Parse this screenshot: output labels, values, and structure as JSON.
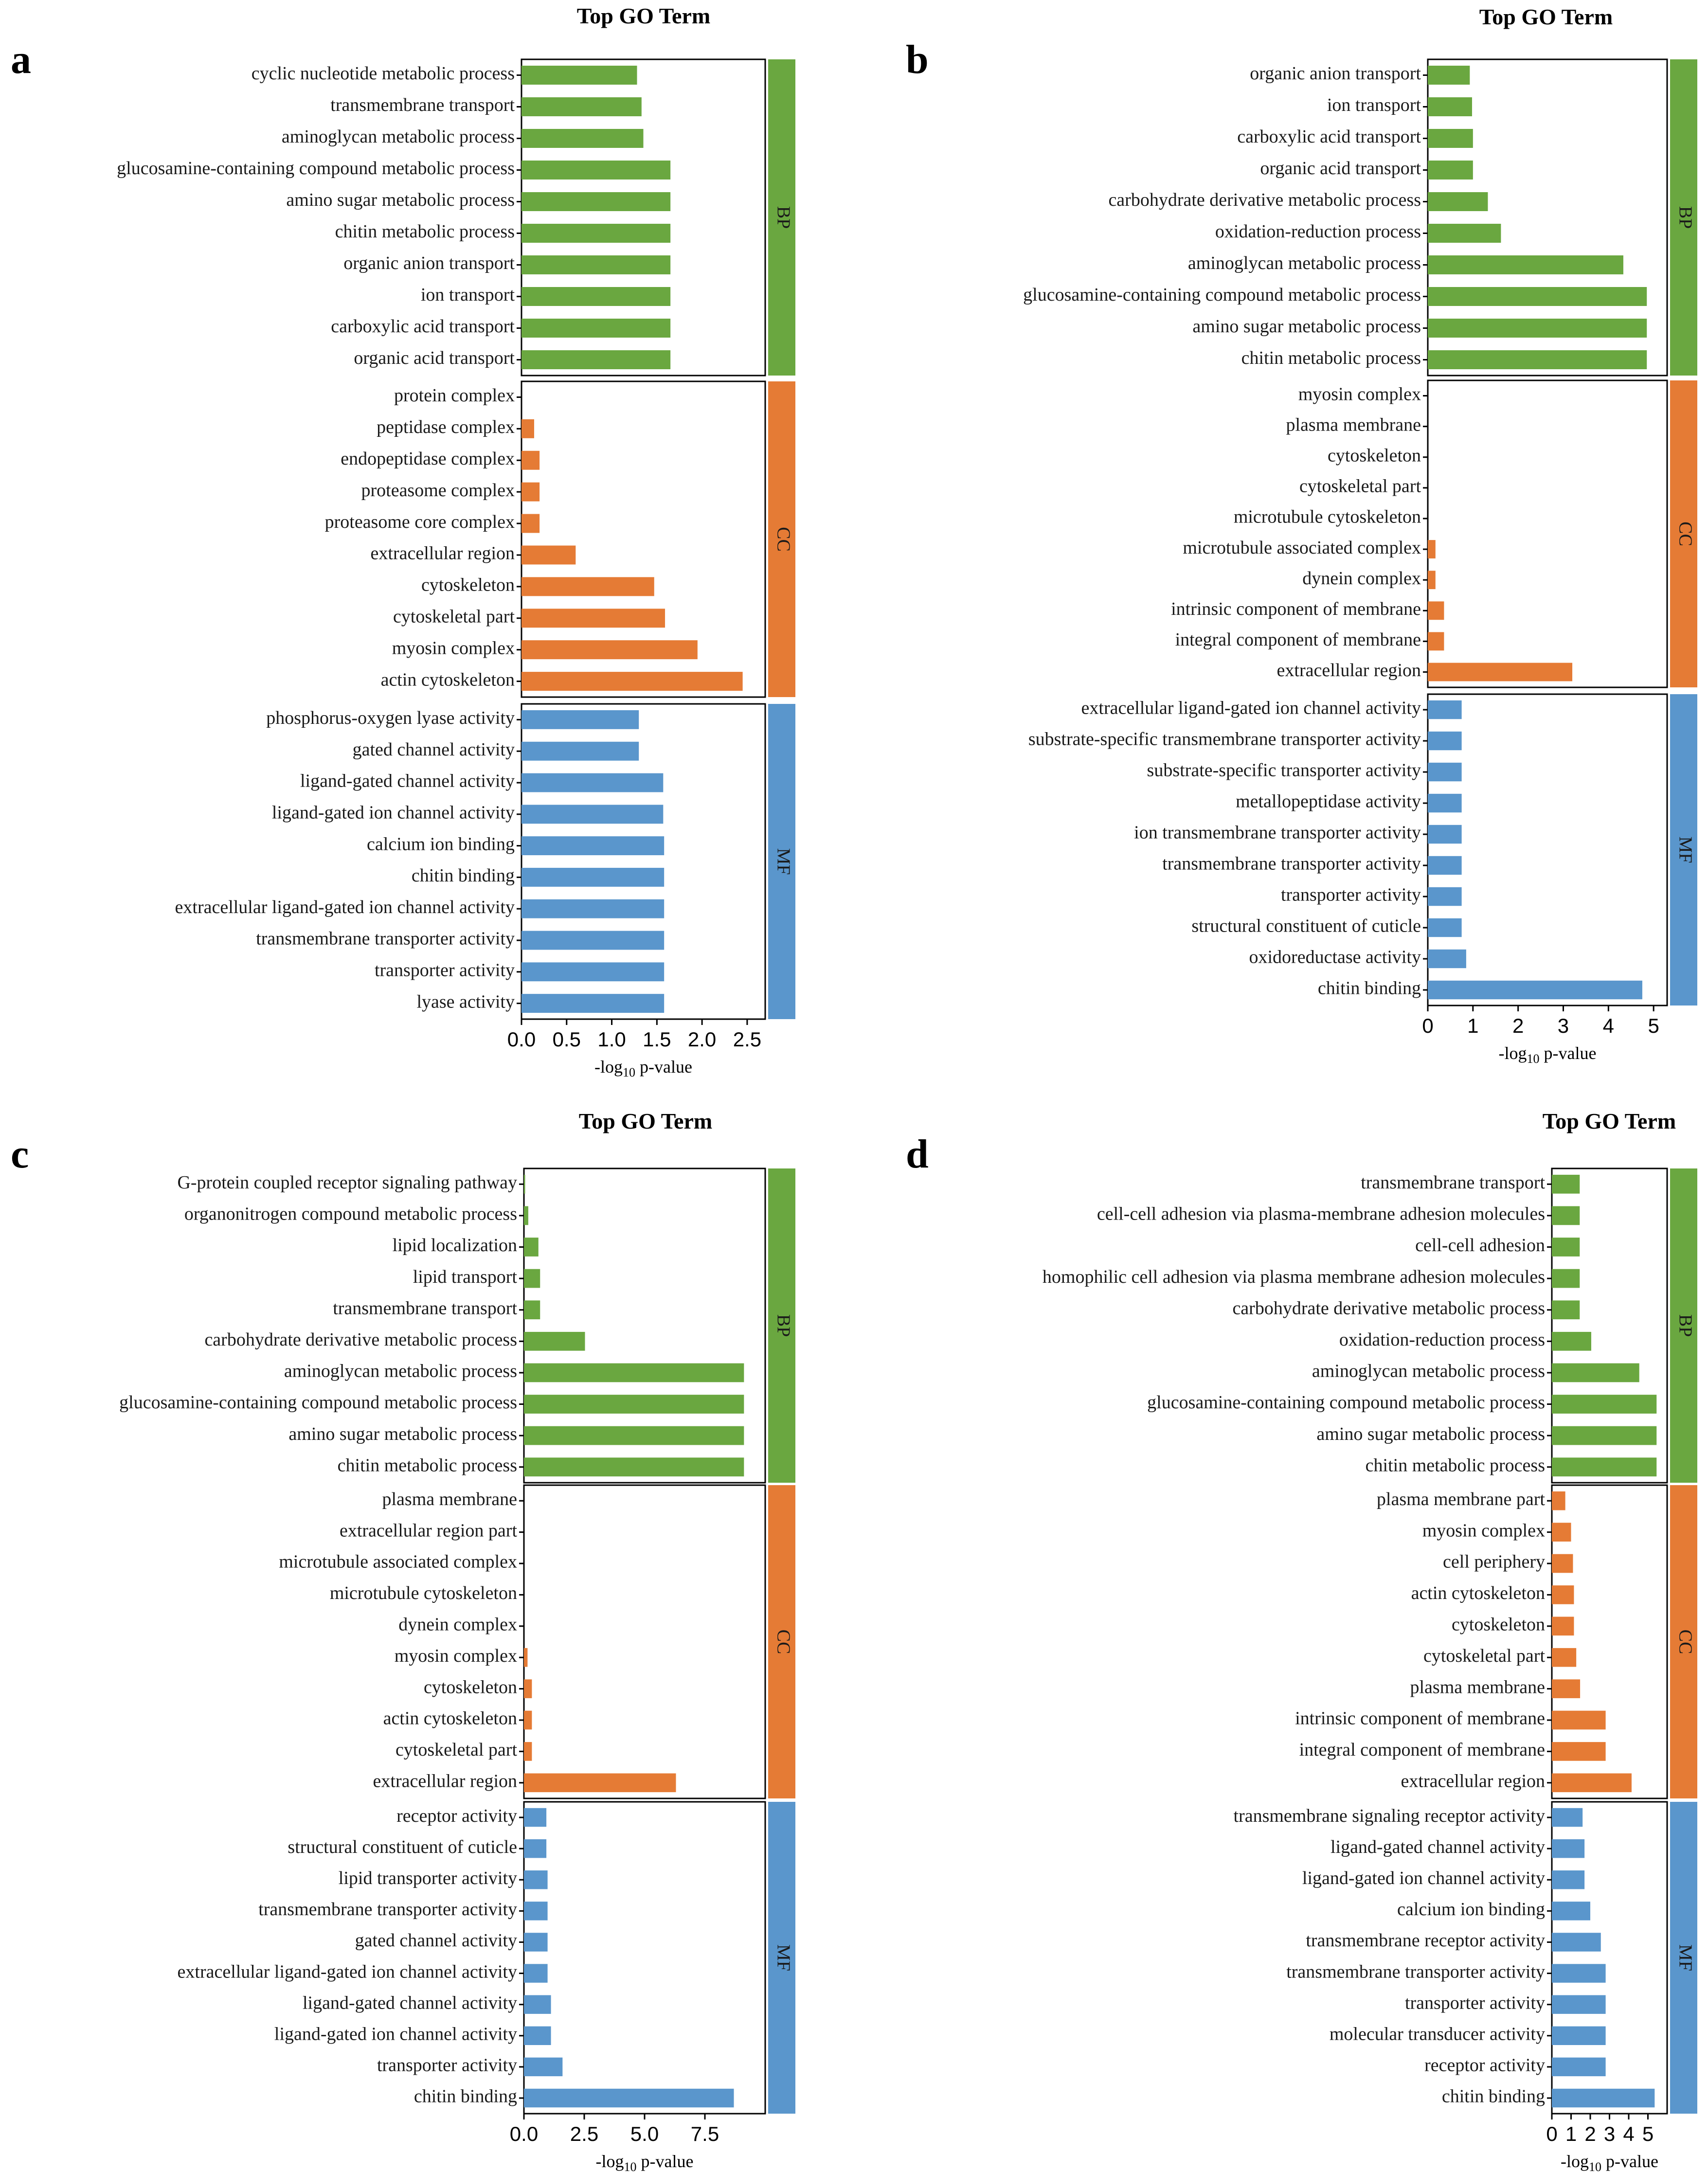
{
  "figure": {
    "colors": {
      "BP": "#6aa740",
      "CC": "#e57b35",
      "MF": "#5a96cc"
    }
  },
  "chart_data": [
    {
      "type": "bar",
      "panel_label": "a",
      "title": "Top GO Term",
      "xlabel_main": "-log",
      "xlabel_sub": "10",
      "xlabel_rest": " p-value",
      "xlim": [
        0,
        2.7
      ],
      "xticks": [
        "0.0",
        "0.5",
        "1.0",
        "1.5",
        "2.0",
        "2.5"
      ],
      "xtick_values": [
        0,
        0.5,
        1.0,
        1.5,
        2.0,
        2.5
      ],
      "groups": [
        {
          "name": "BP",
          "categories": [
            "cyclic nucleotide metabolic process",
            "transmembrane transport",
            "aminoglycan metabolic process",
            "glucosamine-containing compound metabolic process",
            "amino sugar metabolic process",
            "chitin metabolic process",
            "organic anion transport",
            "ion transport",
            "carboxylic acid transport",
            "organic acid transport"
          ],
          "values": [
            1.28,
            1.33,
            1.35,
            1.65,
            1.65,
            1.65,
            1.65,
            1.65,
            1.65,
            1.65
          ]
        },
        {
          "name": "CC",
          "categories": [
            "protein complex",
            "peptidase complex",
            "endopeptidase complex",
            "proteasome complex",
            "proteasome core complex",
            "extracellular region",
            "cytoskeleton",
            "cytoskeletal part",
            "myosin complex",
            "actin cytoskeleton"
          ],
          "values": [
            0.0,
            0.14,
            0.2,
            0.2,
            0.2,
            0.6,
            1.47,
            1.59,
            1.95,
            2.45
          ]
        },
        {
          "name": "MF",
          "categories": [
            "phosphorus-oxygen lyase activity",
            "gated channel activity",
            "ligand-gated channel activity",
            "ligand-gated ion channel activity",
            "calcium ion binding",
            "chitin binding",
            "extracellular ligand-gated ion channel activity",
            "transmembrane transporter activity",
            "transporter activity",
            "lyase activity"
          ],
          "values": [
            1.3,
            1.3,
            1.57,
            1.57,
            1.58,
            1.58,
            1.58,
            1.58,
            1.58,
            1.58
          ]
        }
      ]
    },
    {
      "type": "bar",
      "panel_label": "b",
      "title": "Top GO Term",
      "xlabel_main": "-log",
      "xlabel_sub": "10",
      "xlabel_rest": " p-value",
      "xlim": [
        0,
        5.3
      ],
      "xticks": [
        "0",
        "1",
        "2",
        "3",
        "4",
        "5"
      ],
      "xtick_values": [
        0,
        1,
        2,
        3,
        4,
        5
      ],
      "groups": [
        {
          "name": "BP",
          "categories": [
            "organic anion transport",
            "ion transport",
            "carboxylic acid transport",
            "organic acid transport",
            "carbohydrate derivative metabolic process",
            "oxidation-reduction process",
            "aminoglycan metabolic process",
            "glucosamine-containing compound metabolic process",
            "amino sugar metabolic process",
            "chitin metabolic process"
          ],
          "values": [
            0.93,
            0.98,
            1.0,
            1.0,
            1.33,
            1.62,
            4.33,
            4.85,
            4.85,
            4.85
          ]
        },
        {
          "name": "CC",
          "categories": [
            "myosin complex",
            "plasma membrane",
            "cytoskeleton",
            "cytoskeletal part",
            "microtubule cytoskeleton",
            "microtubule associated complex",
            "dynein complex",
            "intrinsic component of membrane",
            "integral component of membrane",
            "extracellular region"
          ],
          "values": [
            0.0,
            0.0,
            0.0,
            0.0,
            0.0,
            0.17,
            0.17,
            0.36,
            0.36,
            3.2
          ]
        },
        {
          "name": "MF",
          "categories": [
            "extracellular ligand-gated ion channel activity",
            "substrate-specific transmembrane transporter activity",
            "substrate-specific transporter activity",
            "metallopeptidase activity",
            "ion transmembrane transporter activity",
            "transmembrane transporter activity",
            "transporter activity",
            "structural constituent of cuticle",
            "oxidoreductase activity",
            "chitin binding"
          ],
          "values": [
            0.75,
            0.75,
            0.75,
            0.75,
            0.75,
            0.75,
            0.75,
            0.75,
            0.85,
            4.75
          ]
        }
      ]
    },
    {
      "type": "bar",
      "panel_label": "c",
      "title": "Top GO Term",
      "xlabel_main": "-log",
      "xlabel_sub": "10",
      "xlabel_rest": " p-value",
      "xlim": [
        0,
        10.0
      ],
      "xticks": [
        "0.0",
        "2.5",
        "5.0",
        "7.5"
      ],
      "xtick_values": [
        0,
        2.5,
        5.0,
        7.5
      ],
      "groups": [
        {
          "name": "BP",
          "categories": [
            "G-protein coupled receptor signaling pathway",
            "organonitrogen compound metabolic process",
            "lipid localization",
            "lipid transport",
            "transmembrane transport",
            "carbohydrate derivative metabolic process",
            "aminoglycan metabolic process",
            "glucosamine-containing compound metabolic process",
            "amino sugar metabolic process",
            "chitin metabolic process"
          ],
          "values": [
            0.05,
            0.18,
            0.6,
            0.67,
            0.67,
            2.53,
            9.12,
            9.12,
            9.12,
            9.12
          ]
        },
        {
          "name": "CC",
          "categories": [
            "plasma membrane",
            "extracellular region part",
            "microtubule associated complex",
            "microtubule cytoskeleton",
            "dynein complex",
            "myosin complex",
            "cytoskeleton",
            "actin cytoskeleton",
            "cytoskeletal part",
            "extracellular region"
          ],
          "values": [
            0.0,
            0.0,
            0.0,
            0.0,
            0.0,
            0.15,
            0.33,
            0.33,
            0.33,
            6.3
          ]
        },
        {
          "name": "MF",
          "categories": [
            "receptor activity",
            "structural constituent of cuticle",
            "lipid transporter activity",
            "transmembrane transporter activity",
            "gated channel activity",
            "extracellular ligand-gated ion channel activity",
            "ligand-gated channel activity",
            "ligand-gated ion channel activity",
            "transporter activity",
            "chitin binding"
          ],
          "values": [
            0.93,
            0.93,
            0.98,
            0.98,
            0.98,
            0.98,
            1.12,
            1.12,
            1.6,
            8.7
          ]
        }
      ]
    },
    {
      "type": "bar",
      "panel_label": "d",
      "title": "Top GO Term",
      "xlabel_main": "-log",
      "xlabel_sub": "10",
      "xlabel_rest": " p-value",
      "xlim": [
        0,
        6.0
      ],
      "xticks": [
        "0",
        "1",
        "2",
        "3",
        "4",
        "5"
      ],
      "xtick_values": [
        0,
        1,
        2,
        3,
        4,
        5
      ],
      "groups": [
        {
          "name": "BP",
          "categories": [
            "transmembrane transport",
            "cell-cell adhesion via plasma-membrane adhesion molecules",
            "cell-cell adhesion",
            "homophilic cell adhesion via plasma membrane adhesion molecules",
            "carbohydrate derivative metabolic process",
            "oxidation-reduction process",
            "aminoglycan metabolic process",
            "glucosamine-containing compound metabolic process",
            "amino sugar metabolic process",
            "chitin metabolic process"
          ],
          "values": [
            1.45,
            1.45,
            1.45,
            1.45,
            1.45,
            2.05,
            4.55,
            5.45,
            5.45,
            5.45
          ]
        },
        {
          "name": "CC",
          "categories": [
            "plasma membrane part",
            "myosin complex",
            "cell periphery",
            "actin cytoskeleton",
            "cytoskeleton",
            "cytoskeletal part",
            "plasma membrane",
            "intrinsic component of membrane",
            "integral component of membrane",
            "extracellular region"
          ],
          "values": [
            0.7,
            1.0,
            1.1,
            1.15,
            1.15,
            1.27,
            1.47,
            2.8,
            2.8,
            4.15
          ]
        },
        {
          "name": "MF",
          "categories": [
            "transmembrane signaling receptor activity",
            "ligand-gated channel activity",
            "ligand-gated ion channel activity",
            "calcium ion binding",
            "transmembrane receptor activity",
            "transmembrane transporter activity",
            "transporter activity",
            "molecular transducer activity",
            "receptor activity",
            "chitin binding"
          ],
          "values": [
            1.6,
            1.7,
            1.7,
            2.0,
            2.55,
            2.8,
            2.8,
            2.8,
            2.8,
            5.35
          ]
        }
      ]
    }
  ]
}
